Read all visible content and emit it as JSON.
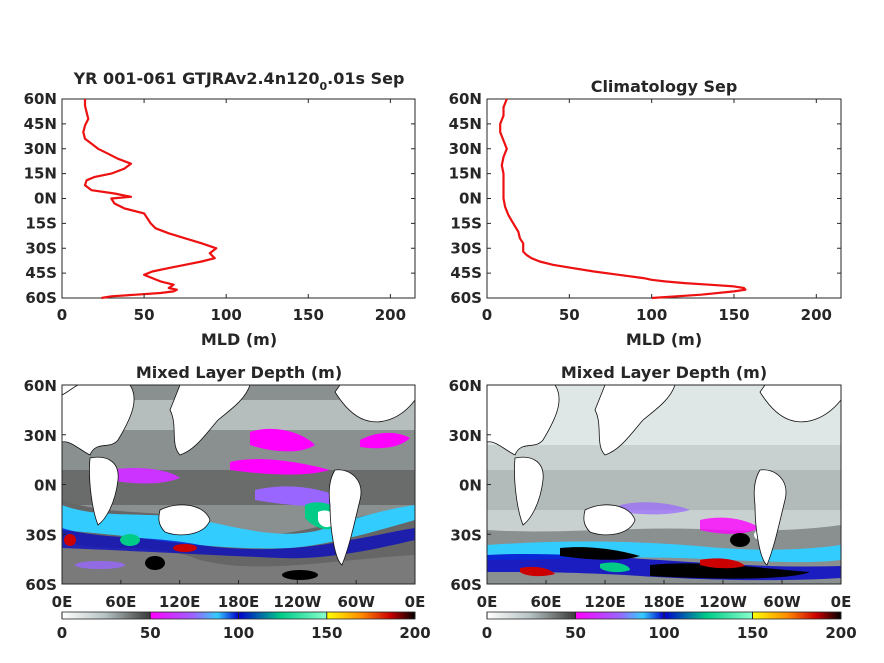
{
  "chart_data": [
    {
      "type": "line",
      "title": "YR 001-061 GTJRAv2.4n120",
      "title_sub": "0",
      "title_end": ".01s Sep",
      "xlabel": "MLD (m)",
      "ylabel": "",
      "xlim": [
        0,
        215
      ],
      "ylim": [
        -60,
        60
      ],
      "xticks": [
        "0",
        "50",
        "100",
        "150",
        "200"
      ],
      "yticks": [
        "60N",
        "45N",
        "30N",
        "15N",
        "0N",
        "15S",
        "30S",
        "45S",
        "60S"
      ],
      "series": [
        {
          "color": "#ee1111",
          "lat": [
            -60,
            -59,
            -58,
            -57,
            -56,
            -55,
            -54,
            -52,
            -50,
            -48,
            -46,
            -44,
            -42,
            -40,
            -38,
            -36,
            -33,
            -30,
            -27,
            -24,
            -21,
            -18,
            -15,
            -12,
            -9,
            -6,
            -3,
            0,
            1,
            3,
            5,
            8,
            11,
            13,
            15,
            18,
            21,
            24,
            27,
            30,
            33,
            36,
            40,
            44,
            48,
            52,
            56,
            60
          ],
          "mld": [
            24,
            30,
            45,
            60,
            68,
            70,
            65,
            68,
            60,
            55,
            50,
            55,
            65,
            75,
            85,
            93,
            90,
            94,
            85,
            75,
            65,
            57,
            54,
            52,
            50,
            38,
            32,
            30,
            42,
            32,
            18,
            14,
            15,
            20,
            30,
            38,
            42,
            34,
            28,
            22,
            18,
            14,
            13,
            14,
            16,
            15,
            14,
            14
          ]
        }
      ]
    },
    {
      "type": "line",
      "title": "Climatology Sep",
      "xlabel": "MLD (m)",
      "ylabel": "",
      "xlim": [
        0,
        215
      ],
      "ylim": [
        -60,
        60
      ],
      "xticks": [
        "0",
        "50",
        "100",
        "150",
        "200"
      ],
      "yticks": [
        "60N",
        "45N",
        "30N",
        "15N",
        "0N",
        "15S",
        "30S",
        "45S",
        "60S"
      ],
      "series": [
        {
          "color": "#ee1111",
          "lat": [
            -60,
            -58,
            -56,
            -55,
            -54,
            -53,
            -52,
            -51,
            -50,
            -49,
            -48,
            -46,
            -44,
            -42,
            -40,
            -38,
            -36,
            -34,
            -32,
            -30,
            -27,
            -24,
            -20,
            -15,
            -10,
            -5,
            0,
            5,
            10,
            15,
            20,
            25,
            30,
            35,
            40,
            45,
            50,
            55,
            60
          ],
          "mld": [
            100,
            130,
            150,
            157,
            156,
            150,
            135,
            120,
            108,
            100,
            95,
            80,
            65,
            52,
            40,
            32,
            27,
            24,
            22,
            22,
            22,
            20,
            19,
            16,
            13,
            11,
            10,
            10,
            10,
            10,
            9,
            10,
            12,
            10,
            8,
            8,
            10,
            10,
            12
          ]
        }
      ]
    },
    {
      "type": "heatmap",
      "title": "Mixed Layer Depth (m)",
      "xticks": [
        "0E",
        "60E",
        "120E",
        "180E",
        "120W",
        "60W",
        "0E"
      ],
      "yticks": [
        "60N",
        "30N",
        "0N",
        "30S",
        "60S"
      ],
      "xlim": [
        0,
        360
      ],
      "ylim": [
        -60,
        60
      ],
      "colorbar": {
        "ticks": [
          "0",
          "50",
          "100",
          "150",
          "200"
        ],
        "range": [
          0,
          200
        ]
      }
    },
    {
      "type": "heatmap",
      "title": "Mixed Layer Depth (m)",
      "xticks": [
        "0E",
        "60E",
        "120E",
        "180E",
        "120W",
        "60W",
        "0E"
      ],
      "yticks": [
        "60N",
        "30N",
        "0N",
        "30S",
        "60S"
      ],
      "xlim": [
        0,
        360
      ],
      "ylim": [
        -60,
        60
      ],
      "colorbar": {
        "ticks": [
          "0",
          "50",
          "100",
          "150",
          "200"
        ],
        "range": [
          0,
          200
        ]
      }
    }
  ]
}
